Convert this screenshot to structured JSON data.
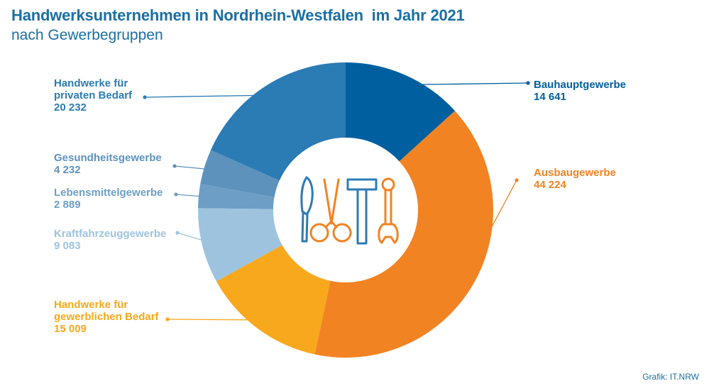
{
  "title": "Handwerksunternehmen in Nordrhein-Westfalen  im Jahr 2021",
  "subtitle": "nach Gewerbegruppen",
  "credit": "Grafik: IT.NRW",
  "center_icon": "tools-icon",
  "chart_data": {
    "type": "pie",
    "variant": "donut",
    "categories": [
      "Bauhauptgewerbe",
      "Ausbaugewerbe",
      "Handwerke für gewerblichen Bedarf",
      "Kraftfahrzeuggewerbe",
      "Lebensmittelgewerbe",
      "Gesundheitsgewerbe",
      "Handwerke für privaten Bedarf"
    ],
    "values": [
      14641,
      44224,
      15009,
      9083,
      2889,
      4232,
      20232
    ],
    "value_labels": [
      "14 641",
      "44 224",
      "15 009",
      "9 083",
      "2 889",
      "4 232",
      "20 232"
    ],
    "label_lines": [
      [
        "Bauhauptgewerbe"
      ],
      [
        "Ausbaugewerbe"
      ],
      [
        "Handwerke für",
        "gewerblichen Bedarf"
      ],
      [
        "Kraftfahrzeuggewerbe"
      ],
      [
        "Lebensmittelgewerbe"
      ],
      [
        "Gesundheitsgewerbe"
      ],
      [
        "Handwerke für",
        "privaten Bedarf"
      ]
    ],
    "colors": [
      "#005f9e",
      "#f28322",
      "#f8a81c",
      "#9ec3de",
      "#6d9ec6",
      "#5d92bd",
      "#2b7bb4"
    ],
    "label_colors": [
      "#005f9e",
      "#f28322",
      "#f8a81c",
      "#9ec3de",
      "#6d9ec6",
      "#5d92bd",
      "#2b7bb4"
    ]
  }
}
